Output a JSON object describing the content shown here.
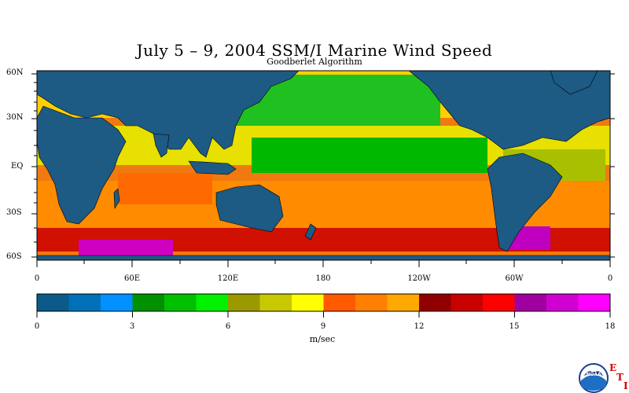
{
  "title": "July 5 – 9, 2004 SSM/I Marine Wind Speed",
  "subtitle": "Goodberlet Algorithm",
  "map": {
    "lat_labels": [
      "60N",
      "30N",
      "EQ",
      "30S",
      "60S"
    ],
    "lon_labels": [
      "0",
      "60E",
      "120E",
      "180",
      "120W",
      "60W",
      "0"
    ],
    "land_color": "#1d5a84",
    "ocean_base_color": "#f07a10"
  },
  "colorbar": {
    "unit": "m/sec",
    "tick_labels": [
      "0",
      "3",
      "6",
      "9",
      "12",
      "15",
      "18"
    ],
    "colors": [
      "#0b5a8a",
      "#0070b8",
      "#0090ff",
      "#009000",
      "#00c000",
      "#00f000",
      "#9a9a00",
      "#c8c800",
      "#ffff00",
      "#ff5a00",
      "#ff8000",
      "#ffa800",
      "#900000",
      "#c80000",
      "#ff0000",
      "#a000a0",
      "#d000d0",
      "#ff00ff"
    ]
  },
  "logo": {
    "text": "NOAA",
    "letters": [
      "E",
      "T",
      "I"
    ]
  }
}
